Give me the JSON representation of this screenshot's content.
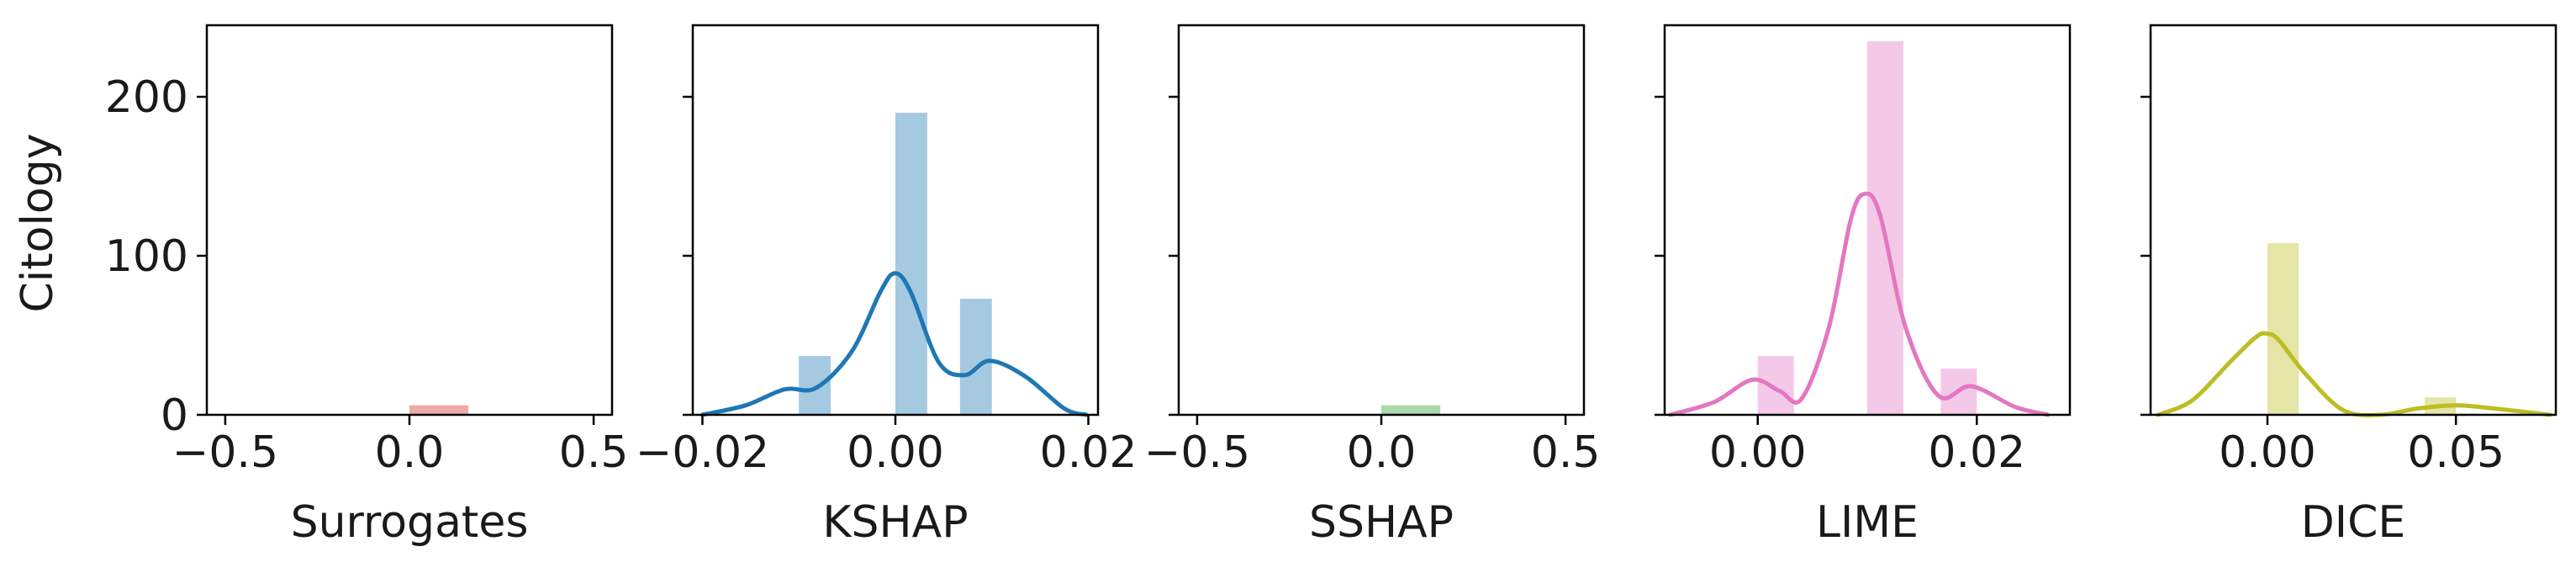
{
  "figure": {
    "ylabel": "Citology",
    "ylim": [
      0,
      245
    ],
    "yticks": [
      0,
      100,
      200
    ]
  },
  "chart_data": [
    {
      "type": "bar",
      "xlabel": "Surrogates",
      "xlim": [
        -0.55,
        0.55
      ],
      "xticks": [
        -0.5,
        0.0,
        0.5
      ],
      "xtick_labels": [
        "−0.5",
        "0.0",
        "0.5"
      ],
      "color": "#d62728",
      "bars": [
        {
          "x0": 0.0,
          "x1": 0.16,
          "value": 6
        }
      ],
      "kde": []
    },
    {
      "type": "bar",
      "xlabel": "KSHAP",
      "xlim": [
        -0.021,
        0.021
      ],
      "xticks": [
        -0.02,
        0.0,
        0.02
      ],
      "xtick_labels": [
        "−0.02",
        "0.00",
        "0.02"
      ],
      "color": "#1f77b4",
      "bars": [
        {
          "x0": -0.01,
          "x1": -0.0067,
          "value": 37
        },
        {
          "x0": 0.0,
          "x1": 0.0033,
          "value": 190
        },
        {
          "x0": 0.0067,
          "x1": 0.01,
          "value": 73
        }
      ],
      "kde": [
        {
          "x": -0.02,
          "y": 0
        },
        {
          "x": -0.0155,
          "y": 6
        },
        {
          "x": -0.0115,
          "y": 16
        },
        {
          "x": -0.0082,
          "y": 17
        },
        {
          "x": -0.0045,
          "y": 40
        },
        {
          "x": -0.0015,
          "y": 78
        },
        {
          "x": 0.0,
          "y": 89
        },
        {
          "x": 0.0016,
          "y": 77
        },
        {
          "x": 0.0045,
          "y": 33
        },
        {
          "x": 0.0072,
          "y": 25
        },
        {
          "x": 0.0098,
          "y": 34
        },
        {
          "x": 0.0135,
          "y": 24
        },
        {
          "x": 0.0175,
          "y": 4
        },
        {
          "x": 0.0198,
          "y": 0
        }
      ]
    },
    {
      "type": "bar",
      "xlabel": "SSHAP",
      "xlim": [
        -0.55,
        0.55
      ],
      "xticks": [
        -0.5,
        0.0,
        0.5
      ],
      "xtick_labels": [
        "−0.5",
        "0.0",
        "0.5"
      ],
      "color": "#2ca02c",
      "bars": [
        {
          "x0": 0.0,
          "x1": 0.16,
          "value": 6
        }
      ],
      "kde": []
    },
    {
      "type": "bar",
      "xlabel": "LIME",
      "xlim": [
        -0.0085,
        0.0285
      ],
      "xticks": [
        0.0,
        0.02
      ],
      "xtick_labels": [
        "0.00",
        "0.02"
      ],
      "color": "#e377c2",
      "bars": [
        {
          "x0": 0.0,
          "x1": 0.0033,
          "value": 37
        },
        {
          "x0": 0.01,
          "x1": 0.0133,
          "value": 235
        },
        {
          "x0": 0.0167,
          "x1": 0.02,
          "value": 29
        }
      ],
      "kde": [
        {
          "x": -0.008,
          "y": 0
        },
        {
          "x": -0.004,
          "y": 8
        },
        {
          "x": -0.0005,
          "y": 22
        },
        {
          "x": 0.002,
          "y": 15
        },
        {
          "x": 0.004,
          "y": 10
        },
        {
          "x": 0.0065,
          "y": 55
        },
        {
          "x": 0.0085,
          "y": 123
        },
        {
          "x": 0.0098,
          "y": 139
        },
        {
          "x": 0.0112,
          "y": 125
        },
        {
          "x": 0.0135,
          "y": 55
        },
        {
          "x": 0.0165,
          "y": 12
        },
        {
          "x": 0.0195,
          "y": 18
        },
        {
          "x": 0.0235,
          "y": 5
        },
        {
          "x": 0.0265,
          "y": 0
        }
      ]
    },
    {
      "type": "bar",
      "xlabel": "DICE",
      "xlim": [
        -0.031,
        0.0765
      ],
      "xticks": [
        0.0,
        0.05
      ],
      "xtick_labels": [
        "0.00",
        "0.05"
      ],
      "color": "#bcbd22",
      "bars": [
        {
          "x0": 0.0,
          "x1": 0.0083,
          "value": 108
        },
        {
          "x0": 0.0417,
          "x1": 0.05,
          "value": 11
        }
      ],
      "kde": [
        {
          "x": -0.029,
          "y": 0
        },
        {
          "x": -0.02,
          "y": 9
        },
        {
          "x": -0.01,
          "y": 33
        },
        {
          "x": -0.003,
          "y": 49
        },
        {
          "x": 0.0,
          "y": 51
        },
        {
          "x": 0.003,
          "y": 47
        },
        {
          "x": 0.01,
          "y": 26
        },
        {
          "x": 0.02,
          "y": 3
        },
        {
          "x": 0.03,
          "y": 0
        },
        {
          "x": 0.04,
          "y": 4
        },
        {
          "x": 0.05,
          "y": 6
        },
        {
          "x": 0.06,
          "y": 4
        },
        {
          "x": 0.075,
          "y": 0
        }
      ]
    }
  ]
}
